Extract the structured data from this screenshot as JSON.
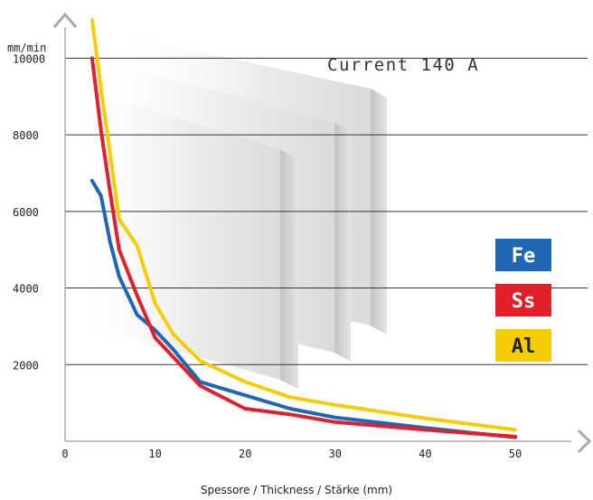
{
  "chart_data": {
    "type": "line",
    "title": "Current 140 A",
    "ylabel": "mm/min",
    "xlabel": "Spessore / Thickness / Stärke (mm)",
    "xlim": [
      0,
      50
    ],
    "ylim": [
      0,
      11000
    ],
    "xticks": [
      "0",
      "10",
      "20",
      "30",
      "40",
      "50"
    ],
    "yticks": [
      "2000",
      "4000",
      "6000",
      "8000",
      "10000"
    ],
    "ytick_values": [
      2000,
      4000,
      6000,
      8000,
      10000
    ],
    "xtick_values": [
      0,
      10,
      20,
      30,
      40,
      50
    ],
    "grid": "horizontal",
    "legend_position": "right",
    "series": [
      {
        "name": "Fe",
        "color": "#1f66b5",
        "legend_text_color": "#ffffff",
        "x": [
          3,
          4,
          5,
          6,
          8,
          10,
          12,
          15,
          20,
          25,
          30,
          40,
          50
        ],
        "y": [
          6800,
          6400,
          5200,
          4300,
          3300,
          2900,
          2400,
          1550,
          1200,
          850,
          620,
          350,
          100
        ]
      },
      {
        "name": "Ss",
        "color": "#e0202a",
        "legend_text_color": "#ffffff",
        "x": [
          3,
          4,
          5,
          6,
          8,
          10,
          12,
          15,
          20,
          25,
          30,
          40,
          50
        ],
        "y": [
          10000,
          8100,
          6500,
          5000,
          3800,
          2700,
          2200,
          1450,
          850,
          700,
          500,
          300,
          120
        ]
      },
      {
        "name": "Al",
        "color": "#f5cd05",
        "legend_text_color": "#222222",
        "x": [
          3,
          4,
          5,
          6,
          8,
          10,
          12,
          15,
          20,
          25,
          30,
          40,
          50
        ],
        "y": [
          11000,
          9200,
          7500,
          5800,
          5100,
          3600,
          2800,
          2100,
          1550,
          1150,
          950,
          600,
          300
        ]
      }
    ]
  }
}
